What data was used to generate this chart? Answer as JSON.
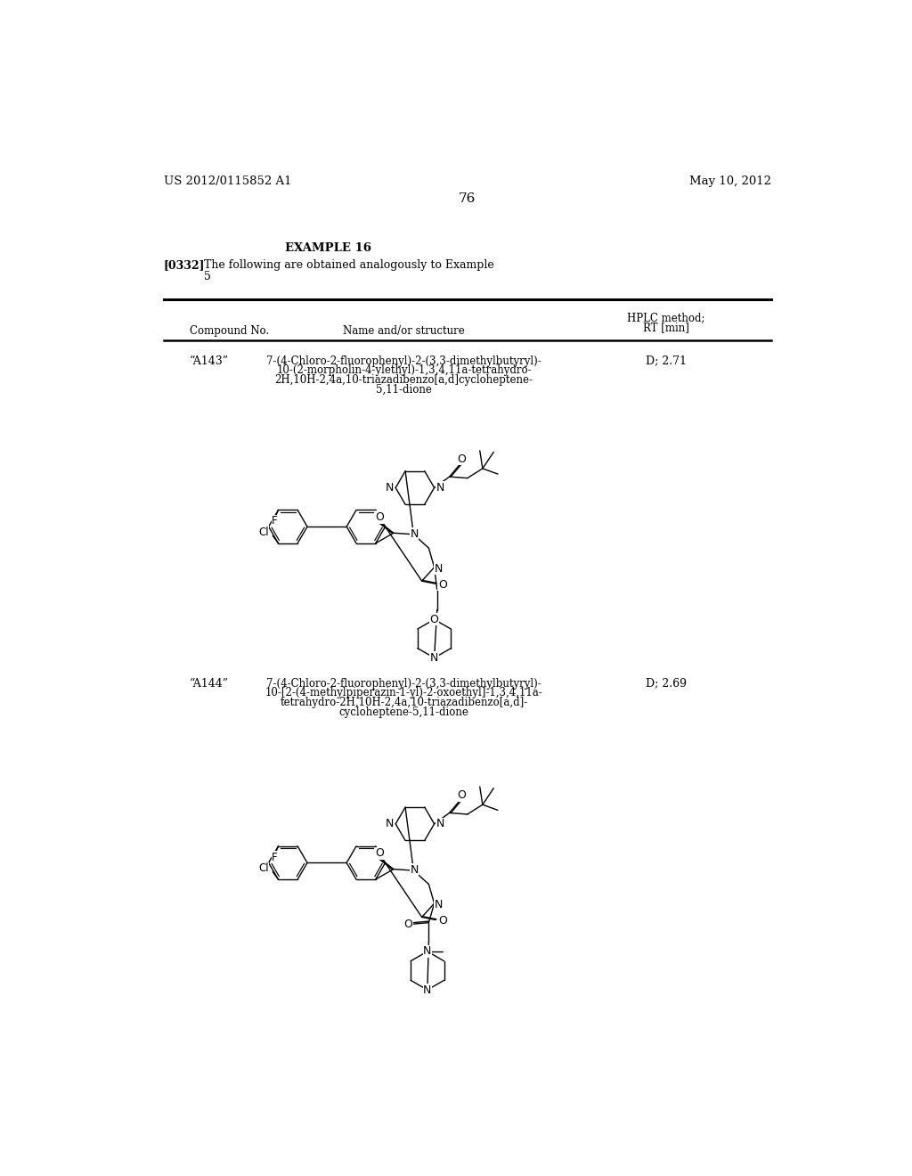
{
  "bg_color": "#ffffff",
  "header_left": "US 2012/0115852 A1",
  "header_right": "May 10, 2012",
  "page_number": "76",
  "example_title": "EXAMPLE 16",
  "paragraph_ref": "[0332]",
  "paragraph_text1": "The following are obtained analogously to Example",
  "paragraph_text2": "5",
  "col_compound": "Compound No.",
  "col_name": "Name and/or structure",
  "col_hplc1": "HPLC method;",
  "col_hplc2": "RT [min]",
  "compound1_no": "“A143”",
  "compound1_name_lines": [
    "7-(4-Chloro-2-fluorophenyl)-2-(3,3-dimethylbutyryl)-",
    "10-(2-morpholin-4-ylethyl)-1,3,4,11a-tetrahydro-",
    "2H,10H-2,4a,10-triazadibenzo[a,d]cycloheptene-",
    "5,11-dione"
  ],
  "compound1_hplc": "D; 2.71",
  "compound2_no": "“A144”",
  "compound2_name_lines": [
    "7-(4-Chloro-2-fluorophenyl)-2-(3,3-dimethylbutyryl)-",
    "10-[2-(4-methylpiperazin-1-yl)-2-oxoethyl]-1,3,4,11a-",
    "tetrahydro-2H,10H-2,4a,10-triazadibenzo[a,d]-",
    "cycloheptene-5,11-dione"
  ],
  "compound2_hplc": "D; 2.69"
}
